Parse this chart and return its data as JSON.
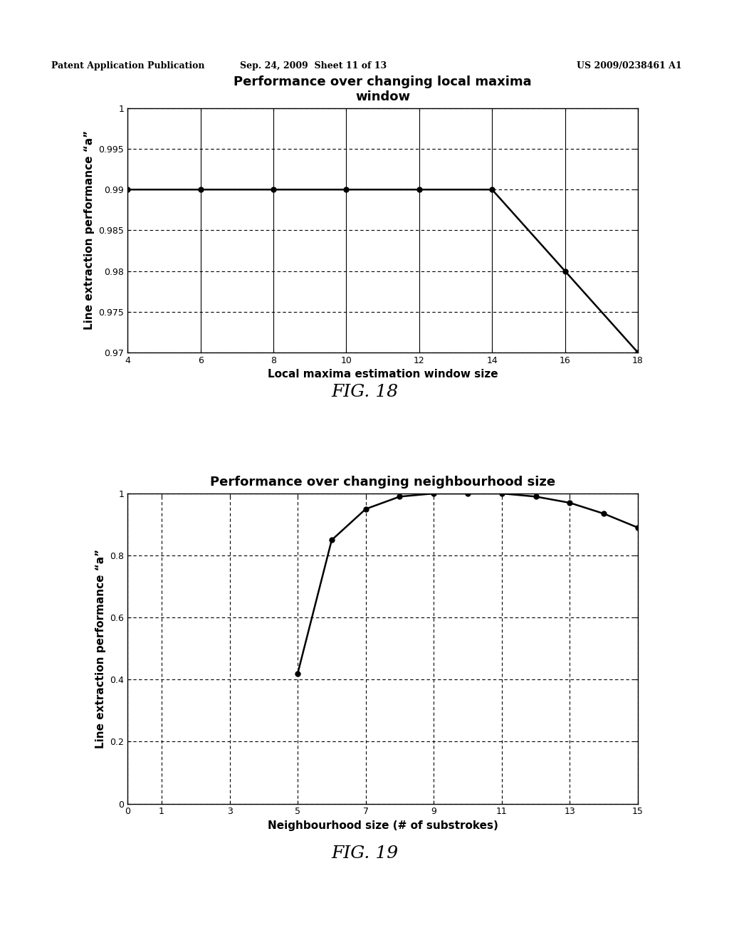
{
  "chart1": {
    "title": "Performance over changing local maxima\nwindow",
    "xlabel": "Local maxima estimation window size",
    "ylabel": "Line extraction performance “a”",
    "x": [
      4,
      6,
      8,
      10,
      12,
      14,
      16,
      18
    ],
    "y": [
      0.99,
      0.99,
      0.99,
      0.99,
      0.99,
      0.99,
      0.98,
      0.97
    ],
    "xlim": [
      4,
      18
    ],
    "ylim": [
      0.97,
      1.0
    ],
    "xticks": [
      4,
      6,
      8,
      10,
      12,
      14,
      16,
      18
    ],
    "yticks": [
      0.97,
      0.975,
      0.98,
      0.985,
      0.99,
      0.995,
      1.0
    ],
    "fig_label": "FIG. 18"
  },
  "chart2": {
    "title": "Performance over changing neighbourhood size",
    "xlabel": "Neighbourhood size (# of substrokes)",
    "ylabel": "Line extraction performance “a”",
    "x": [
      5,
      6,
      7,
      8,
      9,
      10,
      11,
      12,
      13,
      14,
      15
    ],
    "y": [
      0.42,
      0.85,
      0.95,
      0.99,
      1.0,
      1.0,
      1.0,
      0.99,
      0.97,
      0.935,
      0.89
    ],
    "xlim": [
      0,
      15
    ],
    "ylim": [
      0.0,
      1.0
    ],
    "xticks": [
      0,
      1,
      3,
      5,
      7,
      9,
      11,
      13,
      15
    ],
    "yticks": [
      0,
      0.2,
      0.4,
      0.6,
      0.8,
      1.0
    ],
    "fig_label": "FIG. 19"
  },
  "header_left": "Patent Application Publication",
  "header_center": "Sep. 24, 2009  Sheet 11 of 13",
  "header_right": "US 2009/0238461 A1",
  "background_color": "#ffffff",
  "line_color": "#000000",
  "grid_color": "#000000",
  "marker": "o",
  "marker_size": 5,
  "line_width": 1.8
}
